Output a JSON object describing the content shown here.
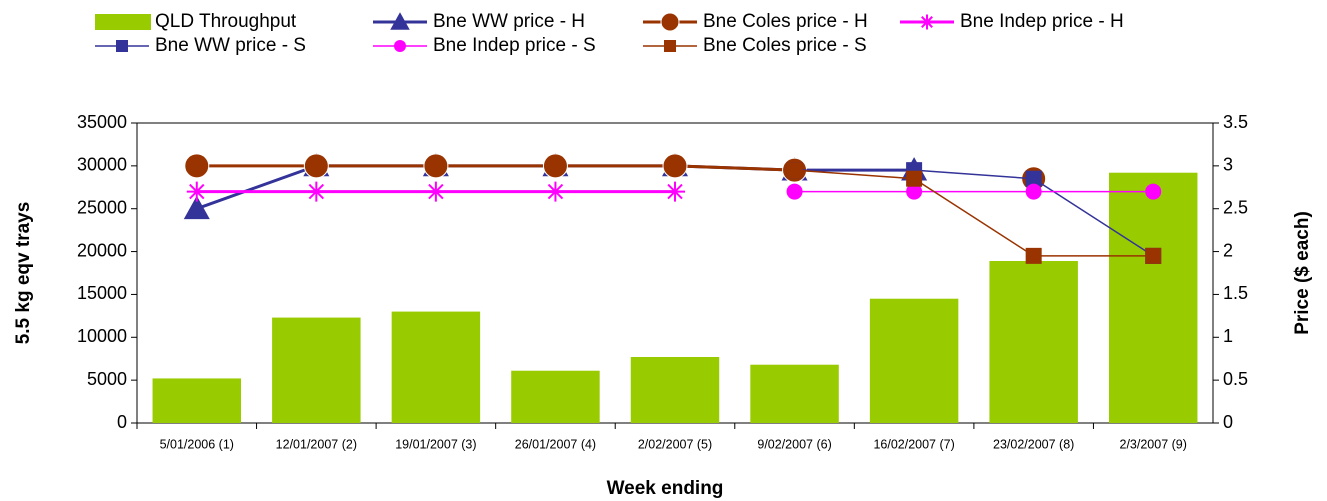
{
  "chart_data": {
    "type": "combo",
    "categories": [
      "5/01/2006 (1)",
      "12/01/2007 (2)",
      "19/01/2007 (3)",
      "26/01/2007 (4)",
      "2/02/2007 (5)",
      "9/02/2007 (6)",
      "16/02/2007 (7)",
      "23/02/2007 (8)",
      "2/3/2007 (9)"
    ],
    "series": [
      {
        "name": "QLD Throughput",
        "type": "bar",
        "color": "#99cc00",
        "values": [
          5200,
          12300,
          13000,
          6100,
          7700,
          6800,
          14500,
          18900,
          29200
        ]
      },
      {
        "name": "Bne WW price - H",
        "type": "line",
        "axis": "y2",
        "color": "#333399",
        "marker": "triangle",
        "values": [
          2.5,
          3,
          3,
          3,
          3,
          2.95,
          2.95,
          null,
          null
        ]
      },
      {
        "name": "Bne Coles price - H",
        "type": "line",
        "axis": "y2",
        "color": "#993300",
        "marker": "circle",
        "values": [
          3,
          3,
          3,
          3,
          3,
          2.95,
          null,
          2.85,
          null
        ]
      },
      {
        "name": "Bne Indep price - H",
        "type": "line",
        "axis": "y2",
        "color": "#ff00ff",
        "marker": "star",
        "values": [
          2.7,
          2.7,
          2.7,
          2.7,
          2.7,
          null,
          null,
          null,
          null
        ]
      },
      {
        "name": "Bne WW price - S",
        "type": "line",
        "axis": "y2",
        "color": "#333399",
        "marker": "square",
        "values": [
          null,
          null,
          null,
          null,
          null,
          2.95,
          2.95,
          2.85,
          1.95
        ]
      },
      {
        "name": "Bne Indep price - S",
        "type": "line",
        "axis": "y2",
        "color": "#ff00ff",
        "marker": "dot",
        "values": [
          null,
          null,
          null,
          null,
          null,
          2.7,
          2.7,
          2.7,
          2.7
        ]
      },
      {
        "name": "Bne Coles price - S",
        "type": "line",
        "axis": "y2",
        "color": "#993300",
        "marker": "square",
        "values": [
          null,
          null,
          null,
          null,
          null,
          2.95,
          2.85,
          1.95,
          1.95
        ]
      }
    ],
    "xlabel": "Week ending",
    "ylabel": "5.5 kg eqv trays",
    "y2label": "Price ($ each)",
    "ylim": [
      0,
      35000
    ],
    "yticks": [
      0,
      5000,
      10000,
      15000,
      20000,
      25000,
      30000,
      35000
    ],
    "y2lim": [
      0,
      3.5
    ],
    "y2ticks": [
      0,
      0.5,
      1,
      1.5,
      2,
      2.5,
      3,
      3.5
    ]
  }
}
